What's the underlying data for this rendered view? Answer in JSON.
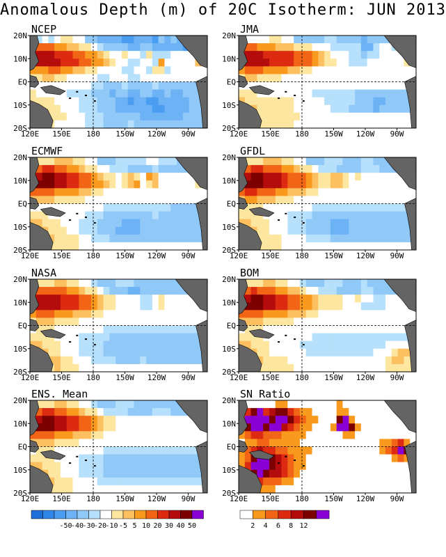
{
  "title": "Anomalous Depth (m) of 20C Isotherm: JUN 2013",
  "panels": [
    {
      "name": "NCEP"
    },
    {
      "name": "JMA"
    },
    {
      "name": "ECMWF"
    },
    {
      "name": "GFDL"
    },
    {
      "name": "NASA"
    },
    {
      "name": "BOM"
    },
    {
      "name": "ENS. Mean"
    },
    {
      "name": "SN Ratio"
    }
  ],
  "lat_labels": [
    "20N",
    "10N",
    "EQ",
    "10S",
    "20S"
  ],
  "lon_labels": [
    "120E",
    "150E",
    "180",
    "150W",
    "120W",
    "90W"
  ],
  "colors": {
    "land": "#646464",
    "anom_scale": [
      "#1e6fd9",
      "#2f86e8",
      "#4a9df0",
      "#6cb2f5",
      "#90c9f8",
      "#b6e0fb",
      "#ffffff",
      "#fde6a0",
      "#fcc060",
      "#f99a1e",
      "#f26416",
      "#dc2b10",
      "#b40c0c",
      "#7d0000",
      "#8a00d4"
    ],
    "sn_scale": [
      "#ffffff",
      "#f99a1e",
      "#f26416",
      "#dc2b10",
      "#b40c0c",
      "#7d0000",
      "#8a00d4"
    ]
  },
  "legend_anom": {
    "labels": [
      "-50",
      "-40",
      "-30",
      "-20",
      "-10",
      "-5",
      "5",
      "10",
      "20",
      "30",
      "40",
      "50"
    ]
  },
  "legend_sn": {
    "labels": [
      "2",
      "4",
      "6",
      "8",
      "12"
    ]
  },
  "chart_data": {
    "type": "heatmap",
    "extent": {
      "lon": [
        "120E",
        "80W"
      ],
      "lat": [
        "20S",
        "20N"
      ]
    },
    "units": "m",
    "anomaly_levels": [
      -50,
      -40,
      -30,
      -20,
      -10,
      -5,
      5,
      10,
      20,
      30,
      40,
      50
    ],
    "sn_levels": [
      2,
      4,
      6,
      8,
      12
    ],
    "maps": [
      {
        "name": "NCEP",
        "grid": [
          "GFGFGHHGGEEDDDDCCDDDCEDEDDDDD",
          "IKKKJJIIHHGFEEEEDDEEDDDDDCCDD",
          "LMMMLLLKKJJIHGGHGGFHFFFGGGGII",
          "MMMMMLLLKKJJIHGGFFGGFJGGGGGII",
          "JJJKKJJIIHHGGGGFFGGFHHFGGGGGG",
          "HHIIHHGGGGGFFGGGFFGGGGGGGGGGG",
          "GGGGGGGGGGFFEEEFEEEEFEEEEEEEE",
          "HGGGGGFFFFEEEDEEDDEEDDEDDEEEE",
          "HHHHGGGGFFFEEEDDCDDCCDDDDDEEE",
          "HIHHHGGGFFFEEEDDDDDDCCDDDDEEE",
          "GHHHHHGGGFFFEEEEEEDDDDDDDEEEE",
          "GGHHGGGGGFFFEEEEFEEEEEEEEEEEE"
        ]
      },
      {
        "name": "JMA",
        "grid": [
          "GGGGGHHGGEEEEEFFEEEEDEEEEDDDD",
          "IKKJJJIIIHHHGGGFFFFFDDFGGFFFF",
          "LMMMLLLLLKKKJIHGGGFFEFFGGGGHH",
          "MMMMMLLLLKKKJIHHGGFFFGGGGGGHH",
          "JKKKJJJJIIHHGGGGGGGGGGGGGGGGG",
          "HIIHHHHGGGGGGGGGGGGGGGGGGGGGG",
          "GGGGGGGGGGGGGGGGGGGGGGGGGGGGG",
          "HHHGGGGGGGGGFFFFFFFEEEEEEEEEE",
          "IHHHHHHHHGGGGGFFFFFEEEDDEEEEE",
          "HIIHHHHHHGGGGGGFFFEEEEDEEEEEE",
          "GHHHHHHHHHGGGGGGGGGGGGGGGGGGG",
          "GGHHHHHHHGGGGGGGGGGGGGGGGGGGG"
        ]
      },
      {
        "name": "ECMWF",
        "grid": [
          "GHHHIIIHHGGEEEFFFFFGGFFFEEEEE",
          "IKLLKKJJIHHGGFFFEEEEFEEEEEEEE",
          "LMNNMMLLKKJIHHGHIHGJIGGGGGGHH",
          "MNNNMMLLKKJJIHGHIJGHIGGGGGGHH",
          "KKKKJJJJIIHHGGGGGGGGGGGGGGGGG",
          "IIIIHHHHHGGGGGGGGGGGGGGGGGGGG",
          "GGGGGGGGGGGGFFFFFFFFFFFEEEEEE",
          "HHHGGGGGGFFFEEEEEEEEFEEEEEEEE",
          "IIHHHGGGFFFEEEEDDDEEEEEEEEEEE",
          "IIIHHHGGFFFEEEDDDDEEEEEEEEEEE",
          "HIIIHHHHGGFFFEEEEEEEEEEEEEEEE",
          "HHHHHHHHGGGGGGGGGGGGGGGGGGGGG"
        ]
      },
      {
        "name": "GFDL",
        "grid": [
          "GHHHIIIHHGGEEEFFFEEEFFEEEEEEE",
          "IKLLKKKJJIHHGFFFEEEEFFFEEEEEE",
          "LMNNMMMLKKKJIHHIIHGHGGGGGGGGH",
          "MNNNMMMLKKKJIHHIIHGGGGGGGGGGH",
          "KLLKKKJJIIIHHGGGGGGGGGGGGGGGG",
          "IJJIIIHHHGGGGGGGGGGGGGGGGGGGG",
          "HHHHGGGGGGGGFFFFFFFFFFFFFFFFF",
          "HHHHGGGGFFFFEEEEEEEEEEEEEEEEE",
          "IIHHHGGGFFFEEEEDDDEEEEEEEEEEE",
          "IIIHHGGGFFFEEEEDDDEEEEEEEEEEE",
          "HIIHHHHGGGGFFFFEEEEEEEEEEEEEE",
          "HHHHHHHGGGGGGGGGGGGGGGGGGGGGG"
        ]
      },
      {
        "name": "NASA",
        "grid": [
          "GHHHIIHHGGFEEEFFFEEEEEEEEDDDD",
          "IKKKKKJJIHHGFEEEDDEEEEEEEEEEE",
          "LMMMMLLLKKJIHHGGGGFFGHGGGGGGG",
          "MMMMMLLLKKJIHHGGGGFFGHGGGGGGG",
          "JKKKJJJIIIHHGGGGGGGGGGGGGGGGG",
          "HIIIHHHHGGGGGGGGGGGGGGGGGGGGG",
          "GHHHGGGGGGGGFFFFFFFFFFFFFFFFF",
          "HHHHGGGGFFFFFEEEEEEEEEEEEEEEE",
          "IIHHHGGGFFFFEEEEEEEEEEEEEEEEE",
          "IIIHHGGGFFFFEEEEEEEEEEEEEEEEE",
          "HHIIIHHGGGFFFFEEEEFEEEEEEEEEE",
          "HHHHIHHHGGGGGGGGGGGGGGGGGGGGG"
        ]
      },
      {
        "name": "BOM",
        "grid": [
          "GHHHIIHHGGFEEEFFFEEEFEEEEEEEE",
          "IKLKKKJJIIHGGFFFEEEEFFEEEEEEE",
          "LMNNMMLLKKJJIHHHHGGHGGFFGGGGH",
          "MNNNMMLLKKJJIHHHHGGGFFFFGGGGH",
          "KKKKJJJJIIIHHGGGGGGGGGGGGGGGG",
          "IIIIHHHHHGGGGGGGGGGGGGGGGGGGG",
          "GHHHGGGGGGGGGGGGGGGGGGGGGGGGG",
          "HHHHGGGGGGGGFFFFFFFFFFFFFFFFF",
          "IIHHHGGGGGFFFFFFFFFFFFFFGGGGH",
          "IIIHHGGGGGGFFFFFFFFFFFGGGHIIH",
          "HIIIHHHHGGGGGGGGGGGGGGGGHIIHH",
          "HHHHHHHHHGGGGGGGGGGGGGGGHHHHH"
        ]
      },
      {
        "name": "ENS. Mean",
        "grid": [
          "GHHHIIHHGGFEEEFFFEEEEEEEEEEEE",
          "IKLLKKJJIHHGFFFFEEEEFFFEEEEEE",
          "LMNNMMLLKKJIHHGGGGGGGGGGGGGGG",
          "MNNNMMLLKKJIHHGGGGGGGGGGGGGGG",
          "KKKKJJJIIIHHGGGGGGGGGGGGGGGGG",
          "IIIIHHHHGGGGGGGGGGGGGGGGGGGGG",
          "GHHHGGGGGGGGFFFFFFFFFFFFFFFFF",
          "HHHHGGGGFFFFEEEEEEEEEEEEEEEEE",
          "IIHHHGGGFFFFEEEEEEEEEEEEEEEEE",
          "IIIHHGGGFFFFEEEEEEEEEEEEEEEEE",
          "HHIIHHHGGGGFFFFFFFFFFFFFFFFFF",
          "HHHHHHHGGGGGGGGGGGGGGGGGGGGGG"
        ]
      },
      {
        "name": "SN Ratio",
        "grid": [
          "AAAAAABBAAAAAAAABAAAAAAAAAAAA",
          "BDFGDEFFDCBBAAAABBAAAAAAAAAAA",
          "CGGGGFGGFDCBBAAAFGBAAAAAAAAAA",
          "BFGGFGGEDCBBAAABGGFBAAAAAAAAA",
          "BCDDCCCBBBBAAAAAABBAAAAAAAAAA",
          "ABBCCBBBBBAAAAAAAAAAAAABBCDBA",
          "BCDEDDCCBBBBAAAAAAAAAAABCDGFB",
          "BCFGGFEDCBBAAAAAAAAAAAAAABCBA",
          "BDGGGFEDCBBAAAAAAAAAAAAAAAAAA",
          "BCFGFEEDCBAAAAAAAAAAAAAAAAAAA",
          "ABCDCCCBBAAAAAAAAAAAAAAAAAAAA",
          "AAABBBAAAAAAAAAAAAAAAAAAAAAAA"
        ]
      }
    ]
  }
}
